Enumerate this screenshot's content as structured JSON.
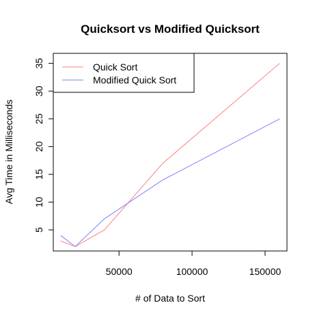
{
  "chart_data": {
    "type": "line",
    "title": "Quicksort vs Modified Quicksort",
    "xlabel": "# of Data to Sort",
    "ylabel": "Avg Time in Milliseconds",
    "x": [
      10000,
      20000,
      40000,
      80000,
      160000
    ],
    "xlim": [
      5000,
      165000
    ],
    "ylim": [
      1.2,
      36.8
    ],
    "x_ticks": [
      50000,
      100000,
      150000
    ],
    "x_tick_labels": [
      "50000",
      "100000",
      "150000"
    ],
    "y_ticks": [
      5,
      10,
      15,
      20,
      25,
      30,
      35
    ],
    "y_tick_labels": [
      "5",
      "10",
      "15",
      "20",
      "25",
      "30",
      "35"
    ],
    "grid": false,
    "legend_position": "top-left",
    "series": [
      {
        "name": "Quick Sort",
        "color": "#ff8080",
        "values": [
          3,
          2,
          5,
          17,
          35
        ]
      },
      {
        "name": "Modified Quick Sort",
        "color": "#8080ff",
        "values": [
          4,
          2,
          7,
          14,
          25
        ]
      }
    ]
  }
}
